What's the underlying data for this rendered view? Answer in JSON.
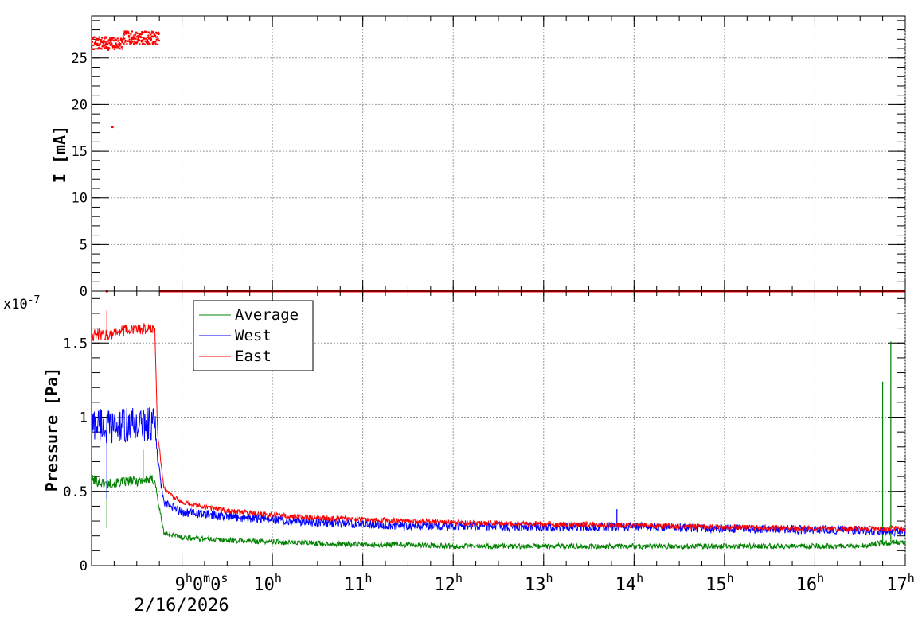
{
  "chart_data": [
    {
      "type": "scatter",
      "panel": "top",
      "ylabel": "I [mA]",
      "ylim": [
        0,
        29.5
      ],
      "yticks": [
        0,
        5,
        10,
        15,
        20,
        25
      ],
      "x_range_hours": [
        8.0,
        17.0
      ],
      "grid": true,
      "series": [
        {
          "color": "#ff0000",
          "segments": [
            {
              "x_start": 8.0,
              "x_end": 8.75,
              "y": 27.3
            },
            {
              "x_start": 8.75,
              "x_end": 17.0,
              "y": 0.0
            }
          ],
          "outliers": [
            {
              "x": 8.23,
              "y": 17.6
            },
            {
              "x": 8.17,
              "y": 0.0
            }
          ]
        }
      ]
    },
    {
      "type": "line",
      "panel": "bottom",
      "ylabel": "Pressure [Pa]",
      "y_multiplier_label": "x10",
      "y_multiplier_exponent": "-7",
      "ylim": [
        0,
        1.85
      ],
      "yticks": [
        0,
        0.5,
        1,
        1.5
      ],
      "x_range_hours": [
        8.0,
        17.0
      ],
      "xtick_hours": [
        9,
        10,
        11,
        12,
        13,
        14,
        15,
        16,
        17
      ],
      "grid": true,
      "legend": {
        "position": "top-left",
        "entries": [
          "Average",
          "West",
          "East"
        ]
      },
      "series": [
        {
          "name": "Average",
          "color": "#008000",
          "x": [
            8.0,
            8.1,
            8.15,
            8.3,
            8.5,
            8.7,
            8.73,
            8.8,
            9.0,
            9.5,
            10.0,
            10.5,
            11.0,
            11.5,
            12.0,
            13.0,
            14.0,
            15.0,
            16.0,
            16.5,
            16.7,
            17.0
          ],
          "y": [
            0.58,
            0.56,
            0.55,
            0.56,
            0.57,
            0.58,
            0.45,
            0.22,
            0.19,
            0.17,
            0.16,
            0.15,
            0.14,
            0.14,
            0.13,
            0.13,
            0.13,
            0.13,
            0.13,
            0.13,
            0.15,
            0.16
          ],
          "spikes": [
            {
              "x": 8.17,
              "y": 0.25
            },
            {
              "x": 8.57,
              "y": 0.78
            },
            {
              "x": 16.75,
              "y": 1.24
            },
            {
              "x": 16.84,
              "y": 1.51
            }
          ]
        },
        {
          "name": "West",
          "color": "#0000ff",
          "x": [
            8.0,
            8.1,
            8.15,
            8.3,
            8.5,
            8.7,
            8.73,
            8.8,
            9.0,
            9.5,
            10.0,
            10.5,
            11.0,
            11.5,
            12.0,
            13.0,
            14.0,
            15.0,
            16.0,
            16.5,
            16.7,
            17.0
          ],
          "y": [
            0.95,
            0.96,
            0.93,
            0.94,
            0.95,
            0.96,
            0.72,
            0.42,
            0.36,
            0.33,
            0.31,
            0.29,
            0.28,
            0.27,
            0.27,
            0.26,
            0.26,
            0.25,
            0.24,
            0.24,
            0.23,
            0.23
          ],
          "spikes": [
            {
              "x": 8.17,
              "y": 0.45
            },
            {
              "x": 13.81,
              "y": 0.38
            }
          ]
        },
        {
          "name": "East",
          "color": "#ff0000",
          "x": [
            8.0,
            8.1,
            8.15,
            8.3,
            8.5,
            8.7,
            8.73,
            8.8,
            9.0,
            9.5,
            10.0,
            10.5,
            11.0,
            11.5,
            12.0,
            13.0,
            14.0,
            15.0,
            16.0,
            16.5,
            16.7,
            17.0
          ],
          "y": [
            1.55,
            1.56,
            1.55,
            1.58,
            1.59,
            1.6,
            0.9,
            0.52,
            0.42,
            0.37,
            0.34,
            0.32,
            0.31,
            0.3,
            0.29,
            0.28,
            0.27,
            0.26,
            0.25,
            0.25,
            0.25,
            0.25
          ],
          "spikes": [
            {
              "x": 8.17,
              "y": 1.72
            }
          ]
        }
      ]
    }
  ],
  "x_axis": {
    "first_label_main": "9",
    "first_label_sups": [
      "h",
      "m",
      "s"
    ],
    "first_label_parts": [
      "0",
      "0"
    ],
    "date_label": "2/16/2026",
    "hour_labels": [
      "10",
      "11",
      "12",
      "13",
      "14",
      "15",
      "16",
      "17"
    ],
    "hour_suffix": "h"
  }
}
